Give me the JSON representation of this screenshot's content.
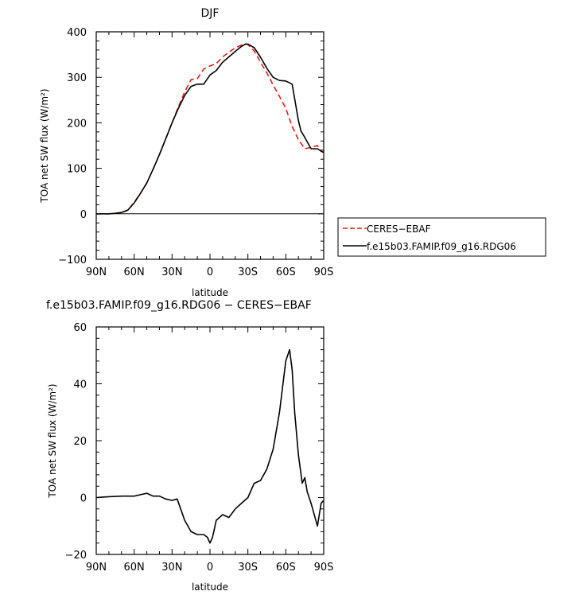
{
  "chart_data": [
    {
      "type": "line",
      "title": "DJF",
      "xlabel": "latitude",
      "ylabel": "TOA net SW flux (W/m²)",
      "xlim": [
        -90,
        90
      ],
      "ylim": [
        -100,
        400
      ],
      "xticks": [
        -90,
        -60,
        -30,
        0,
        30,
        60,
        90
      ],
      "xtick_labels": [
        "90N",
        "60N",
        "30N",
        "0",
        "30S",
        "60S",
        "90S"
      ],
      "yticks": [
        -100,
        0,
        100,
        200,
        300,
        400
      ],
      "ytick_labels": [
        "−100",
        "0",
        "100",
        "200",
        "300",
        "400"
      ],
      "grid": false,
      "legend_position": "right",
      "series": [
        {
          "name": "CERES−EBAF",
          "color": "#e0201b",
          "style": "dashed",
          "x": [
            -90,
            -85,
            -80,
            -75,
            -70,
            -65,
            -60,
            -55,
            -50,
            -45,
            -40,
            -35,
            -30,
            -25,
            -20,
            -15,
            -10,
            -5,
            0,
            5,
            10,
            15,
            20,
            25,
            28,
            30,
            35,
            40,
            45,
            50,
            55,
            60,
            65,
            70,
            75,
            80,
            85,
            88,
            90
          ],
          "y": [
            0,
            0,
            0,
            1,
            3,
            8,
            25,
            45,
            68,
            98,
            130,
            165,
            200,
            235,
            268,
            295,
            297,
            318,
            325,
            330,
            345,
            355,
            365,
            371,
            373,
            372,
            358,
            333,
            310,
            283,
            258,
            232,
            192,
            163,
            143,
            146,
            150,
            137,
            135
          ]
        },
        {
          "name": "f.e15b03.FAMIP.f09_g16.RDG06",
          "color": "#000000",
          "style": "solid",
          "x": [
            -90,
            -85,
            -80,
            -75,
            -70,
            -65,
            -60,
            -55,
            -50,
            -45,
            -40,
            -35,
            -30,
            -25,
            -20,
            -15,
            -10,
            -5,
            0,
            5,
            10,
            15,
            20,
            25,
            28,
            30,
            35,
            40,
            45,
            50,
            55,
            60,
            65,
            70,
            72,
            75,
            80,
            85,
            88,
            90
          ],
          "y": [
            0,
            0,
            0,
            1,
            3,
            8,
            24,
            45,
            68,
            98,
            130,
            165,
            200,
            232,
            260,
            280,
            285,
            285,
            305,
            315,
            333,
            345,
            357,
            368,
            373,
            373,
            365,
            344,
            320,
            300,
            293,
            292,
            285,
            205,
            182,
            168,
            143,
            143,
            138,
            135
          ]
        }
      ]
    },
    {
      "type": "line",
      "title": "f.e15b03.FAMIP.f09_g16.RDG06 − CERES−EBAF",
      "xlabel": "latitude",
      "ylabel": "TOA net SW flux (W/m²)",
      "xlim": [
        -90,
        90
      ],
      "ylim": [
        -20,
        60
      ],
      "xticks": [
        -90,
        -60,
        -30,
        0,
        30,
        60,
        90
      ],
      "xtick_labels": [
        "90N",
        "60N",
        "30N",
        "0",
        "30S",
        "60S",
        "90S"
      ],
      "yticks": [
        -20,
        0,
        20,
        40,
        60
      ],
      "ytick_labels": [
        "−20",
        "0",
        "20",
        "40",
        "60"
      ],
      "grid": false,
      "series": [
        {
          "color": "#000000",
          "style": "solid",
          "x": [
            -90,
            -80,
            -70,
            -60,
            -55,
            -50,
            -45,
            -40,
            -35,
            -30,
            -26,
            -24,
            -20,
            -15,
            -10,
            -5,
            -2,
            0,
            2,
            5,
            10,
            15,
            20,
            25,
            30,
            35,
            40,
            45,
            50,
            55,
            60,
            63,
            65,
            67,
            70,
            73,
            75,
            77,
            80,
            85,
            88,
            90
          ],
          "y": [
            0,
            0.3,
            0.5,
            0.5,
            1,
            1.5,
            0.5,
            0.5,
            -0.5,
            -1,
            -0.5,
            -3,
            -8,
            -12,
            -13,
            -13,
            -14,
            -16,
            -14,
            -8,
            -6,
            -7,
            -4,
            -2,
            0,
            5,
            6,
            10,
            17,
            30,
            48,
            52,
            45,
            30,
            15,
            5,
            7,
            2,
            -2,
            -10,
            -2,
            -1
          ]
        }
      ]
    }
  ],
  "legend": {
    "items": [
      {
        "label": "CERES−EBAF",
        "color": "#e0201b",
        "style": "dashed"
      },
      {
        "label": "f.e15b03.FAMIP.f09_g16.RDG06",
        "color": "#000000",
        "style": "solid"
      }
    ]
  }
}
